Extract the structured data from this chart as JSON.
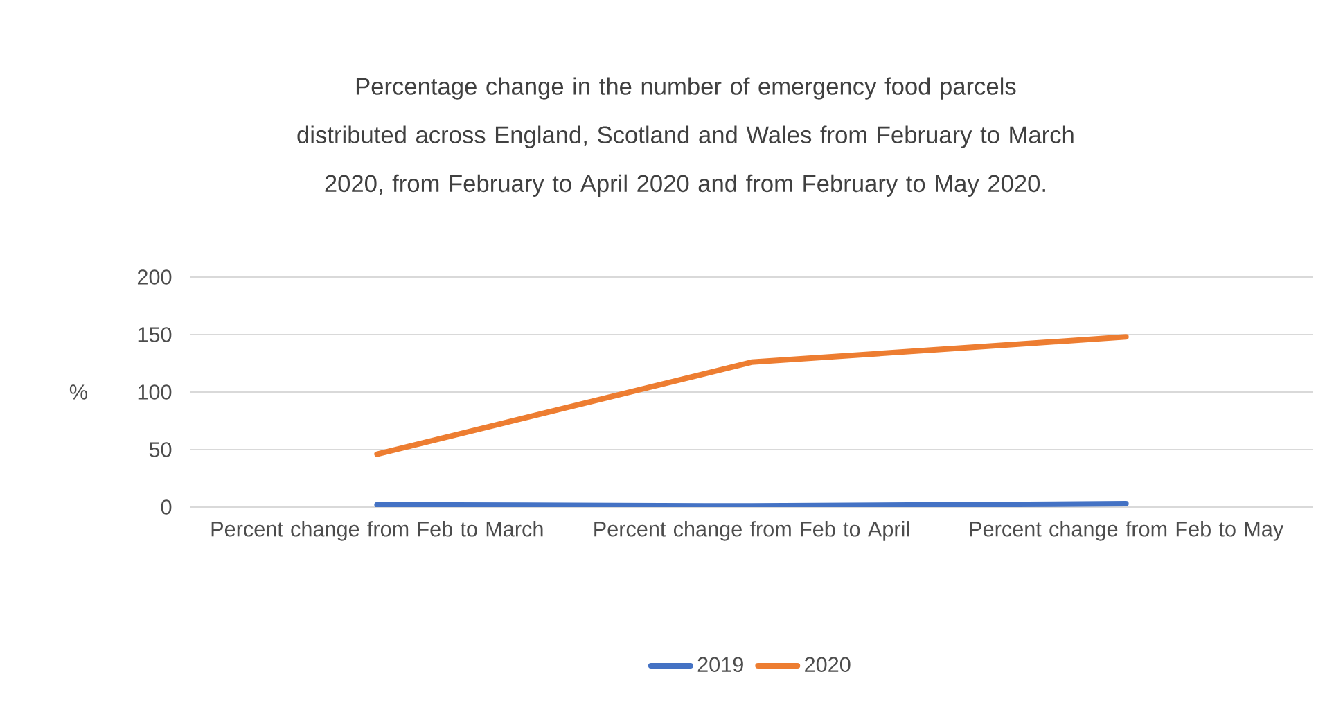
{
  "chart_data": {
    "type": "line",
    "title": "Percentage change in the number of emergency food parcels distributed across England, Scotland and Wales from February to March 2020, from February to April 2020 and from February to May 2020.",
    "ylabel": "%",
    "categories": [
      "Percent change from Feb to March",
      "Percent change from Feb to April",
      "Percent change from Feb to May"
    ],
    "series": [
      {
        "name": "2019",
        "color": "#4472c4",
        "values": [
          2,
          1,
          3
        ]
      },
      {
        "name": "2020",
        "color": "#ed7d31",
        "values": [
          46,
          126,
          148
        ]
      }
    ],
    "ylim": [
      0,
      200
    ],
    "yticks": [
      0,
      50,
      100,
      150,
      200
    ],
    "grid": "y",
    "legend": "bottom"
  }
}
